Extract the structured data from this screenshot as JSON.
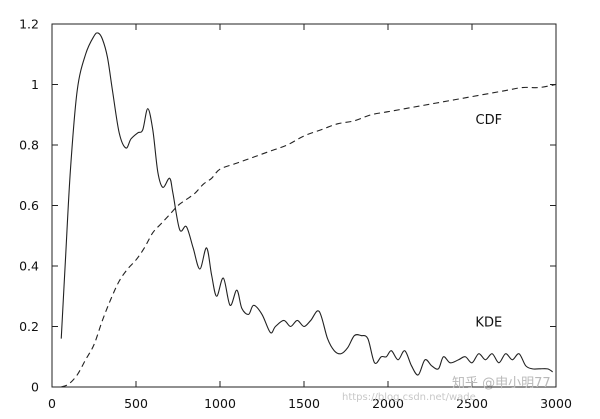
{
  "chart_data": {
    "type": "line",
    "title": "",
    "xlabel": "",
    "ylabel": "",
    "xlim": [
      0,
      3000
    ],
    "ylim": [
      0,
      1.2
    ],
    "grid": false,
    "x_ticks": [
      0,
      500,
      1000,
      1500,
      2000,
      2500,
      3000
    ],
    "x_tick_labels": [
      "0",
      "500",
      "1000",
      "1500",
      "2000",
      "2500",
      "3000"
    ],
    "y_ticks": [
      0,
      0.2,
      0.4,
      0.6,
      0.8,
      1,
      1.2
    ],
    "y_tick_labels": [
      "0",
      "0.2",
      "0.4",
      "0.6",
      "0.8",
      "1",
      "1.2"
    ],
    "series": [
      {
        "name": "KDE",
        "style": "solid",
        "color": "#222222",
        "x": [
          55,
          80,
          110,
          150,
          200,
          250,
          275,
          300,
          330,
          360,
          400,
          440,
          470,
          510,
          540,
          570,
          600,
          630,
          660,
          700,
          720,
          760,
          800,
          840,
          880,
          920,
          950,
          980,
          1020,
          1060,
          1100,
          1130,
          1170,
          1200,
          1250,
          1300,
          1330,
          1380,
          1420,
          1460,
          1500,
          1540,
          1590,
          1640,
          1680,
          1720,
          1760,
          1800,
          1840,
          1880,
          1920,
          1960,
          1990,
          2020,
          2060,
          2100,
          2140,
          2180,
          2220,
          2260,
          2300,
          2330,
          2370,
          2420,
          2460,
          2500,
          2540,
          2580,
          2620,
          2660,
          2700,
          2740,
          2780,
          2820,
          2860,
          2900,
          2950,
          2980
        ],
        "values": [
          0.16,
          0.42,
          0.72,
          0.98,
          1.1,
          1.16,
          1.17,
          1.15,
          1.09,
          0.98,
          0.84,
          0.79,
          0.82,
          0.84,
          0.85,
          0.92,
          0.85,
          0.71,
          0.66,
          0.69,
          0.64,
          0.52,
          0.53,
          0.46,
          0.39,
          0.46,
          0.37,
          0.3,
          0.36,
          0.27,
          0.32,
          0.26,
          0.24,
          0.27,
          0.24,
          0.18,
          0.2,
          0.22,
          0.2,
          0.22,
          0.2,
          0.22,
          0.25,
          0.16,
          0.12,
          0.11,
          0.13,
          0.17,
          0.17,
          0.16,
          0.08,
          0.1,
          0.1,
          0.12,
          0.09,
          0.12,
          0.07,
          0.04,
          0.09,
          0.07,
          0.06,
          0.1,
          0.08,
          0.09,
          0.1,
          0.08,
          0.11,
          0.09,
          0.11,
          0.08,
          0.11,
          0.09,
          0.11,
          0.07,
          0.06,
          0.06,
          0.06,
          0.05
        ]
      },
      {
        "name": "CDF",
        "style": "dashed",
        "color": "#222222",
        "x": [
          55,
          100,
          150,
          200,
          250,
          300,
          350,
          400,
          450,
          500,
          550,
          600,
          650,
          700,
          750,
          800,
          850,
          900,
          950,
          1000,
          1100,
          1200,
          1300,
          1400,
          1500,
          1600,
          1700,
          1800,
          1900,
          2000,
          2100,
          2200,
          2300,
          2400,
          2500,
          2600,
          2700,
          2800,
          2900,
          3000
        ],
        "values": [
          0,
          0.01,
          0.04,
          0.09,
          0.14,
          0.22,
          0.29,
          0.35,
          0.39,
          0.42,
          0.46,
          0.51,
          0.54,
          0.57,
          0.6,
          0.62,
          0.64,
          0.67,
          0.69,
          0.72,
          0.74,
          0.76,
          0.78,
          0.8,
          0.83,
          0.85,
          0.87,
          0.88,
          0.9,
          0.91,
          0.92,
          0.93,
          0.94,
          0.95,
          0.96,
          0.97,
          0.98,
          0.99,
          0.99,
          1.0
        ]
      }
    ],
    "annotations": [
      {
        "text": "CDF",
        "x": 2600,
        "y": 0.87
      },
      {
        "text": "KDE",
        "x": 2600,
        "y": 0.2
      }
    ]
  },
  "watermark": {
    "main": "知乎 @申小明77",
    "url": "https://blog.csdn.net/wade"
  }
}
